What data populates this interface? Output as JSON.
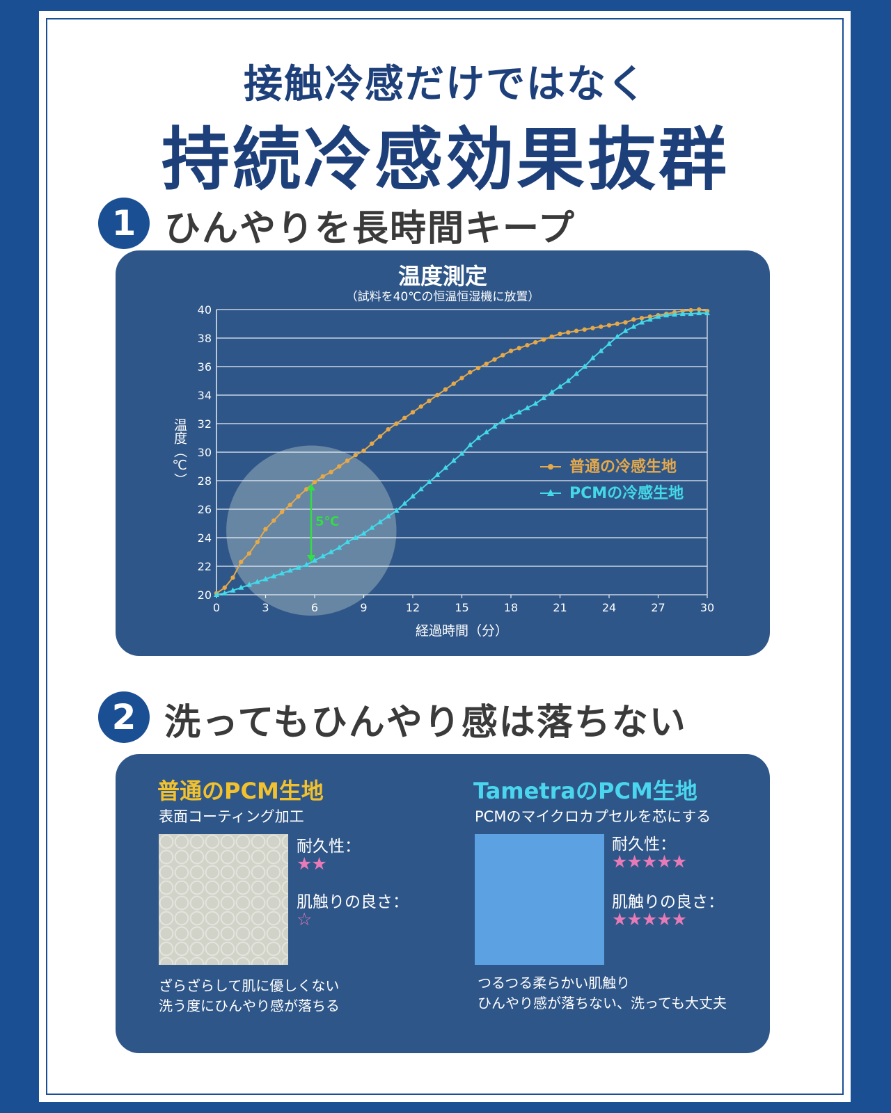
{
  "header": {
    "line1": "接触冷感だけではなく",
    "line2": "持続冷感効果抜群"
  },
  "section1": {
    "number": "1",
    "title": "ひんやりを長時間キープ"
  },
  "section2": {
    "number": "2",
    "title": "洗ってもひんやり感は落ちない"
  },
  "colors": {
    "brand_blue": "#1a4f94",
    "panel_blue": "#2f5688",
    "normal_series": "#e5a94a",
    "pcm_series": "#44d9e8",
    "highlight_green": "#33dd44",
    "title_yellow": "#f2c12e",
    "title_cyan": "#4ad6ee",
    "star_pink": "#e87ab7"
  },
  "chart_data": {
    "type": "line",
    "title": "温度測定",
    "subtitle": "（試料を40℃の恒温恒湿機に放置）",
    "xlabel": "経過時間（分）",
    "ylabel": "温度（℃）",
    "xlim": [
      0,
      30
    ],
    "ylim": [
      20,
      40
    ],
    "xticks": [
      "0",
      "3",
      "6",
      "9",
      "12",
      "15",
      "18",
      "21",
      "24",
      "27",
      "30"
    ],
    "yticks": [
      "20",
      "22",
      "24",
      "26",
      "28",
      "30",
      "32",
      "34",
      "36",
      "38",
      "40"
    ],
    "grid": true,
    "legend_position": "right",
    "series": [
      {
        "name": "普通の冷感生地",
        "marker": "circle",
        "x": [
          0,
          0.5,
          1,
          1.5,
          2,
          2.5,
          3,
          3.5,
          4,
          4.5,
          5,
          5.5,
          6,
          6.5,
          7,
          7.5,
          8,
          8.5,
          9,
          9.5,
          10,
          10.5,
          11,
          11.5,
          12,
          12.5,
          13,
          13.5,
          14,
          14.5,
          15,
          15.5,
          16,
          16.5,
          17,
          17.5,
          18,
          18.5,
          19,
          19.5,
          20,
          20.5,
          21,
          21.5,
          22,
          22.5,
          23,
          23.5,
          24,
          24.5,
          25,
          25.5,
          26,
          26.5,
          27,
          27.5,
          28,
          28.5,
          29,
          29.5,
          30
        ],
        "y": [
          20.1,
          20.5,
          21.2,
          22.3,
          22.9,
          23.7,
          24.6,
          25.2,
          25.8,
          26.3,
          26.9,
          27.4,
          27.9,
          28.3,
          28.6,
          29.0,
          29.4,
          29.8,
          30.1,
          30.6,
          31.1,
          31.6,
          32.0,
          32.4,
          32.8,
          33.2,
          33.6,
          34.0,
          34.4,
          34.8,
          35.2,
          35.6,
          35.9,
          36.2,
          36.5,
          36.8,
          37.1,
          37.3,
          37.5,
          37.7,
          37.9,
          38.1,
          38.3,
          38.4,
          38.5,
          38.6,
          38.7,
          38.8,
          38.9,
          39.0,
          39.1,
          39.3,
          39.4,
          39.5,
          39.6,
          39.7,
          39.8,
          39.9,
          39.95,
          40.0,
          39.9
        ]
      },
      {
        "name": "PCMの冷感生地",
        "marker": "triangle",
        "x": [
          0,
          0.5,
          1,
          1.5,
          2,
          2.5,
          3,
          3.5,
          4,
          4.5,
          5,
          5.5,
          6,
          6.5,
          7,
          7.5,
          8,
          8.5,
          9,
          9.5,
          10,
          10.5,
          11,
          11.5,
          12,
          12.5,
          13,
          13.5,
          14,
          14.5,
          15,
          15.5,
          16,
          16.5,
          17,
          17.5,
          18,
          18.5,
          19,
          19.5,
          20,
          20.5,
          21,
          21.5,
          22,
          22.5,
          23,
          23.5,
          24,
          24.5,
          25,
          25.5,
          26,
          26.5,
          27,
          27.5,
          28,
          28.5,
          29,
          29.5,
          30
        ],
        "y": [
          20.0,
          20.1,
          20.3,
          20.5,
          20.7,
          20.9,
          21.1,
          21.3,
          21.5,
          21.7,
          21.9,
          22.1,
          22.4,
          22.7,
          23.0,
          23.3,
          23.7,
          24.0,
          24.3,
          24.7,
          25.1,
          25.5,
          25.9,
          26.4,
          26.9,
          27.4,
          27.9,
          28.4,
          28.9,
          29.4,
          29.9,
          30.5,
          31.0,
          31.4,
          31.8,
          32.2,
          32.5,
          32.8,
          33.1,
          33.4,
          33.8,
          34.2,
          34.6,
          35.0,
          35.5,
          36.0,
          36.6,
          37.1,
          37.6,
          38.1,
          38.5,
          38.8,
          39.1,
          39.3,
          39.5,
          39.6,
          39.65,
          39.7,
          39.7,
          39.75,
          39.75
        ]
      }
    ],
    "annotation": {
      "label": "5℃",
      "x": 6,
      "from": 22.3,
      "to": 27.8
    },
    "highlight_circle": {
      "cx": 5.8,
      "cy": 24.5,
      "r_minutes": 5.2
    }
  },
  "comparison": {
    "left": {
      "title": "普通のPCM生地",
      "subtitle": "表面コーティング加工",
      "durability_label": "耐久性：",
      "durability_stars": "★★",
      "touch_label": "肌触りの良さ：",
      "touch_stars": "☆",
      "note_line1": "ざらざらして肌に優しくない",
      "note_line2": "洗う度にひんやり感が落ちる"
    },
    "right": {
      "title": "TametraのPCM生地",
      "subtitle": "PCMのマイクロカプセルを芯にする",
      "durability_label": "耐久性：",
      "durability_stars": "★★★★★",
      "touch_label": "肌触りの良さ：",
      "touch_stars": "★★★★★",
      "note_line1": "つるつる柔らかい肌触り",
      "note_line2": "ひんやり感が落ちない、洗っても大丈夫"
    }
  }
}
